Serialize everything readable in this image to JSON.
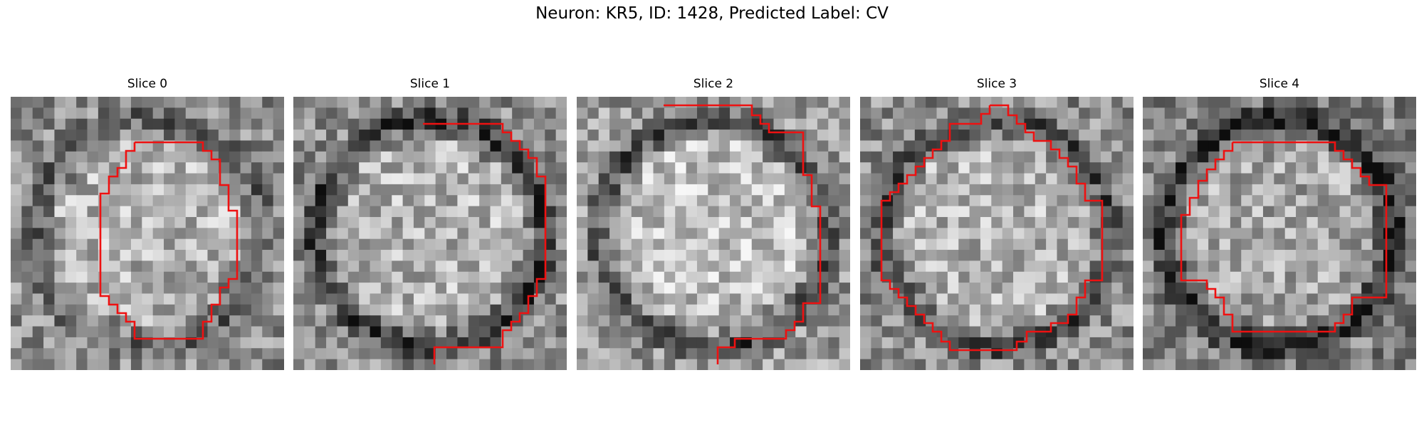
{
  "figure": {
    "title": "Neuron: KR5, ID: 1428, Predicted Label: CV"
  },
  "panels": [
    {
      "title": "Slice 0",
      "seed": 11,
      "ring": 0.45,
      "bg": 0.55
    },
    {
      "title": "Slice 1",
      "seed": 23,
      "ring": 0.85,
      "bg": 0.55
    },
    {
      "title": "Slice 2",
      "seed": 37,
      "ring": 0.75,
      "bg": 0.6
    },
    {
      "title": "Slice 3",
      "seed": 41,
      "ring": 0.65,
      "bg": 0.55
    },
    {
      "title": "Slice 4",
      "seed": 53,
      "ring": 0.9,
      "bg": 0.5
    }
  ],
  "contour_color": "#ee1111"
}
